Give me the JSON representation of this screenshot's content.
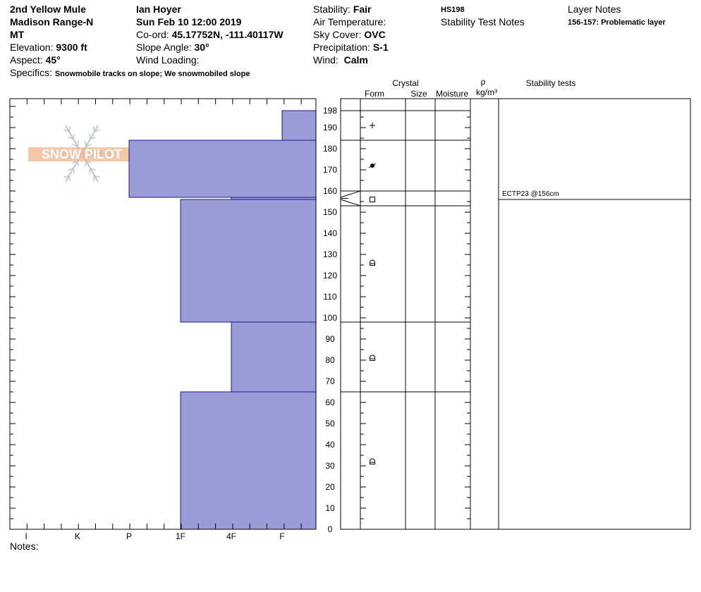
{
  "header": {
    "location": "2nd Yellow Mule",
    "range": "Madison Range-N",
    "state": "MT",
    "elevation_label": "Elevation:",
    "elevation_value": "9300 ft",
    "aspect_label": "Aspect:",
    "aspect_value": "45°",
    "specifics_label": "Specifics:",
    "specifics_value": "Snowmobile tracks on slope; We snowmobiled slope",
    "observer": "Ian Hoyer",
    "datetime": "Sun Feb 10 12:00 2019",
    "coord_label": "Co-ord:",
    "coord_value": "45.17752N, -111.40117W",
    "slope_label": "Slope Angle:",
    "slope_value": "30°",
    "wind_loading_label": "Wind Loading:",
    "stability_label": "Stability:",
    "stability_value": "Fair",
    "air_temp_label": "Air Temperature:",
    "sky_label": "Sky Cover:",
    "sky_value": "OVC",
    "precip_label": "Precipitation:",
    "precip_value": "S-1",
    "wind_label": "Wind:",
    "wind_value": "Calm",
    "hs": "HS198",
    "stability_notes_title": "Stability Test Notes",
    "layer_notes_title": "Layer Notes",
    "layer_note": "156-157: Problematic layer"
  },
  "logo_text": "SNOW PILOT",
  "notes_label": "Notes:",
  "colors": {
    "hardness_fill": "#9b9bd7",
    "hardness_stroke": "#1a1a8c",
    "logo": "#f0b48c"
  },
  "chart_data": {
    "type": "snow-profile",
    "hs": 198,
    "depth_ticks": [
      0,
      10,
      20,
      30,
      40,
      50,
      60,
      70,
      80,
      90,
      100,
      110,
      120,
      130,
      140,
      150,
      160,
      170,
      180,
      190,
      198
    ],
    "hardness_ticks": [
      "I",
      "K",
      "P",
      "1F",
      "4F",
      "F"
    ],
    "hardness_layers": [
      {
        "top": 198,
        "bottom": 184,
        "hardness": "F"
      },
      {
        "top": 184,
        "bottom": 157,
        "hardness": "P"
      },
      {
        "top": 157,
        "bottom": 156,
        "hardness": "4F"
      },
      {
        "top": 156,
        "bottom": 98,
        "hardness": "1F"
      },
      {
        "top": 98,
        "bottom": 65,
        "hardness": "4F"
      },
      {
        "top": 65,
        "bottom": 0,
        "hardness": "1F"
      }
    ],
    "layer_boundaries": [
      198,
      184,
      160,
      153,
      98,
      65
    ],
    "crystal_forms": [
      {
        "depth": 191,
        "form": "new-snow-icon"
      },
      {
        "depth": 172,
        "form": "rimed-particles-icon"
      },
      {
        "depth": 156,
        "form": "facets-icon"
      },
      {
        "depth": 126,
        "form": "rounded-facets-icon"
      },
      {
        "depth": 81,
        "form": "rounded-facets-icon"
      },
      {
        "depth": 32,
        "form": "rounded-facets-icon"
      }
    ],
    "columns": {
      "crystal": "Crystal",
      "form": "Form",
      "size": "Size",
      "moisture": "Moisture",
      "rho": "ρ",
      "density_unit": "kg/m³",
      "stability_tests": "Stability tests"
    },
    "stability_tests": [
      {
        "depth": 156,
        "label": "ECTP23 @156cm"
      }
    ]
  }
}
